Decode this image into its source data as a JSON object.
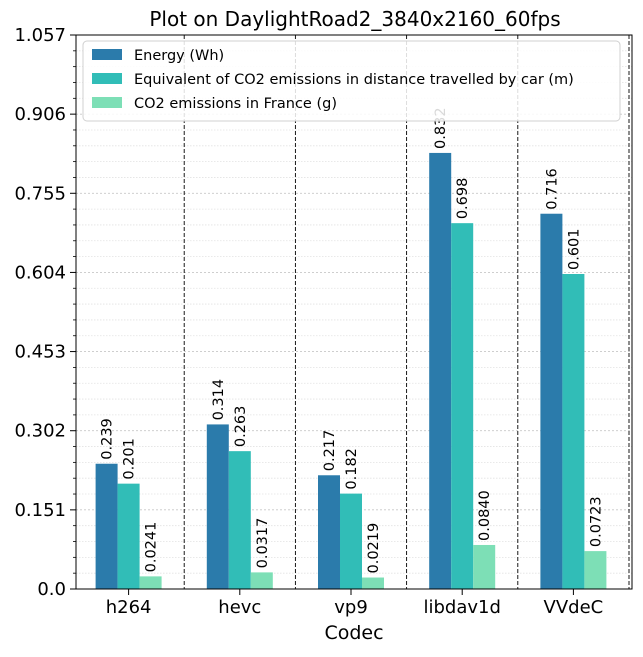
{
  "chart_data": {
    "type": "bar",
    "title": "Plot on DaylightRoad2_3840x2160_60fps",
    "xlabel": "Codec",
    "ylabel": "",
    "categories": [
      "h264",
      "hevc",
      "vp9",
      "libdav1d",
      "VVdeC"
    ],
    "series": [
      {
        "name": "Energy (Wh)",
        "color": "#2b7bab",
        "values": [
          0.239,
          0.314,
          0.217,
          0.832,
          0.716
        ],
        "labels": [
          "0.239",
          "0.314",
          "0.217",
          "0.832",
          "0.716"
        ]
      },
      {
        "name": "Equivalent of CO2 emissions in distance travelled by car (m)",
        "color": "#31bdb7",
        "values": [
          0.201,
          0.263,
          0.182,
          0.698,
          0.601
        ],
        "labels": [
          "0.201",
          "0.263",
          "0.182",
          "0.698",
          "0.601"
        ]
      },
      {
        "name": "CO2 emissions in France (g)",
        "color": "#7ddfb6",
        "values": [
          0.0241,
          0.0317,
          0.0219,
          0.084,
          0.0723
        ],
        "labels": [
          "0.0241",
          "0.0317",
          "0.0219",
          "0.0840",
          "0.0723"
        ]
      }
    ],
    "ylim": [
      0.0,
      1.057
    ],
    "yticks": [
      0.0,
      0.151,
      0.302,
      0.453,
      0.604,
      0.755,
      0.906,
      1.057
    ],
    "ytick_labels": [
      "0.0",
      "0.151",
      "0.302",
      "0.453",
      "0.604",
      "0.755",
      "0.906",
      "1.057"
    ],
    "grid": true,
    "legend_position": "top-left"
  }
}
